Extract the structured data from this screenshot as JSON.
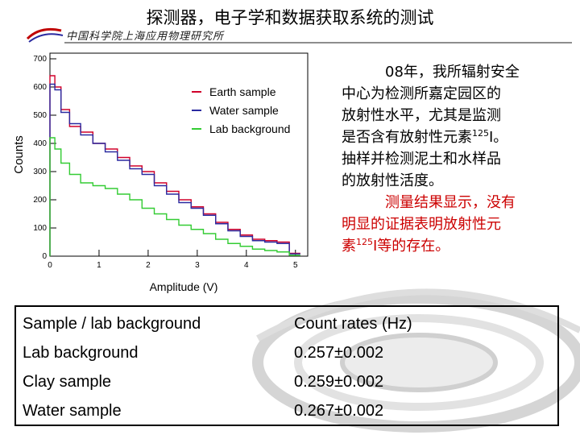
{
  "slide": {
    "title": "探测器，电子学和数据获取系统的测试",
    "logo_text": "中国科学院上海应用物理研究所"
  },
  "text_block": {
    "line1": "08年，我所辐射安全",
    "line2": "中心为检测所嘉定园区的",
    "line3": "放射性水平，尤其是监测",
    "line4_pre": "是否含有放射性元素",
    "line4_sup": "125",
    "line4_post": "I。",
    "line5": "抽样并检测泥土和水样品",
    "line6": "的放射性活度。",
    "red1": "测量结果显示，没有",
    "red2": "明显的证据表明放射性元",
    "red3_pre": "素",
    "red3_sup": "125",
    "red3_post": "I等的存在。"
  },
  "table": {
    "headers": [
      "Sample / lab background",
      "Count rates (Hz)"
    ],
    "rows": [
      [
        "Lab background",
        "0.257±0.002"
      ],
      [
        "Clay sample",
        "0.259±0.002"
      ],
      [
        "Water sample",
        "0.267±0.002"
      ]
    ]
  },
  "colors": {
    "earth": "#d0002a",
    "water": "#2a2aa0",
    "lab": "#33cc33"
  },
  "chart_data": {
    "type": "line",
    "xlabel": "Amplitude (V)",
    "ylabel": "Counts",
    "xlim": [
      0,
      5.25
    ],
    "ylim": [
      0,
      720
    ],
    "x_ticks": [
      0,
      1,
      2,
      3,
      4,
      5
    ],
    "x_tick_labels": [
      "0",
      "1",
      "2",
      "3",
      "4",
      "5"
    ],
    "y_ticks": [
      0,
      100,
      200,
      300,
      400,
      500,
      600,
      700
    ],
    "y_tick_labels": [
      "0",
      "100",
      "200",
      "300",
      "400",
      "500",
      "600",
      "700"
    ],
    "legend_position": "top-right",
    "x": [
      0.05,
      0.15,
      0.3,
      0.5,
      0.75,
      1.0,
      1.25,
      1.5,
      1.75,
      2.0,
      2.25,
      2.5,
      2.75,
      3.0,
      3.25,
      3.5,
      3.75,
      4.0,
      4.25,
      4.5,
      4.75,
      5.0
    ],
    "series": [
      {
        "name": "Earth sample",
        "values": [
          640,
          600,
          520,
          460,
          440,
          400,
          380,
          350,
          320,
          300,
          260,
          230,
          200,
          175,
          150,
          120,
          95,
          75,
          60,
          55,
          50,
          10
        ]
      },
      {
        "name": "Water sample",
        "values": [
          610,
          590,
          510,
          470,
          430,
          400,
          370,
          340,
          310,
          290,
          250,
          220,
          190,
          170,
          145,
          115,
          90,
          70,
          55,
          50,
          45,
          8
        ]
      },
      {
        "name": "Lab background",
        "values": [
          420,
          380,
          330,
          290,
          260,
          250,
          240,
          220,
          200,
          170,
          150,
          130,
          110,
          95,
          80,
          60,
          45,
          35,
          25,
          20,
          15,
          3
        ]
      }
    ]
  }
}
